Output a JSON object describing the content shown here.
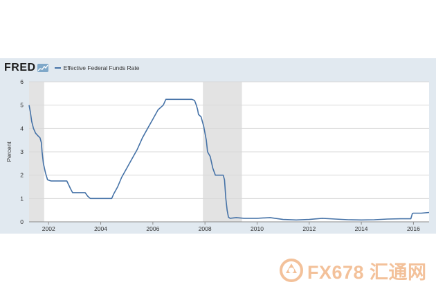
{
  "header": {
    "logo": "FRED",
    "legend_label": "Effective Federal Funds Rate"
  },
  "watermark": {
    "text": "FX678 汇通网"
  },
  "colors": {
    "line": "#4572a7",
    "panel_background": "#e1e9f0",
    "recession_shade": "#e3e3e3",
    "grid": "#d8d8d8",
    "watermark": "#f3c19a"
  },
  "icons": [
    "fred-logo-graph-icon",
    "fx678-logo-icon"
  ],
  "chart_data": {
    "type": "line",
    "title": "",
    "xlabel": "",
    "ylabel": "Percent",
    "xlim": [
      2001.25,
      2016.6
    ],
    "ylim": [
      0,
      6
    ],
    "grid": true,
    "legend": "top-left",
    "x_ticks": [
      "2002",
      "2004",
      "2006",
      "2008",
      "2010",
      "2012",
      "2014",
      "2016"
    ],
    "y_ticks": [
      "0",
      "1",
      "2",
      "3",
      "4",
      "5",
      "6"
    ],
    "recessions": [
      [
        2001.25,
        2001.83
      ],
      [
        2007.92,
        2009.42
      ]
    ],
    "series": [
      {
        "name": "Effective Federal Funds Rate",
        "x": [
          2001.25,
          2001.3,
          2001.35,
          2001.42,
          2001.5,
          2001.58,
          2001.67,
          2001.72,
          2001.75,
          2001.8,
          2001.88,
          2001.96,
          2002.1,
          2002.4,
          2002.7,
          2002.85,
          2002.92,
          2003.1,
          2003.4,
          2003.5,
          2003.6,
          2003.8,
          2004.2,
          2004.42,
          2004.5,
          2004.65,
          2004.8,
          2005.0,
          2005.2,
          2005.4,
          2005.6,
          2005.8,
          2006.0,
          2006.2,
          2006.4,
          2006.5,
          2006.6,
          2006.9,
          2007.2,
          2007.5,
          2007.6,
          2007.67,
          2007.72,
          2007.75,
          2007.85,
          2007.95,
          2008.05,
          2008.1,
          2008.2,
          2008.3,
          2008.4,
          2008.5,
          2008.6,
          2008.7,
          2008.75,
          2008.8,
          2008.85,
          2008.9,
          2008.96,
          2009.2,
          2009.5,
          2010.0,
          2010.5,
          2011.0,
          2011.5,
          2012.0,
          2012.5,
          2013.0,
          2013.5,
          2014.0,
          2014.5,
          2015.0,
          2015.5,
          2015.9,
          2015.96,
          2016.0,
          2016.3,
          2016.6
        ],
        "values": [
          5.0,
          4.7,
          4.3,
          4.0,
          3.8,
          3.7,
          3.6,
          3.4,
          3.0,
          2.5,
          2.1,
          1.8,
          1.75,
          1.75,
          1.75,
          1.4,
          1.25,
          1.25,
          1.25,
          1.1,
          1.0,
          1.0,
          1.0,
          1.0,
          1.2,
          1.5,
          1.9,
          2.3,
          2.7,
          3.1,
          3.6,
          4.0,
          4.4,
          4.8,
          5.0,
          5.25,
          5.25,
          5.25,
          5.25,
          5.25,
          5.2,
          5.0,
          4.8,
          4.6,
          4.5,
          4.1,
          3.5,
          3.0,
          2.8,
          2.3,
          2.0,
          2.0,
          2.0,
          2.0,
          1.8,
          1.0,
          0.5,
          0.2,
          0.15,
          0.18,
          0.15,
          0.15,
          0.18,
          0.1,
          0.08,
          0.1,
          0.15,
          0.12,
          0.09,
          0.08,
          0.09,
          0.12,
          0.13,
          0.13,
          0.36,
          0.37,
          0.37,
          0.4
        ]
      }
    ]
  }
}
